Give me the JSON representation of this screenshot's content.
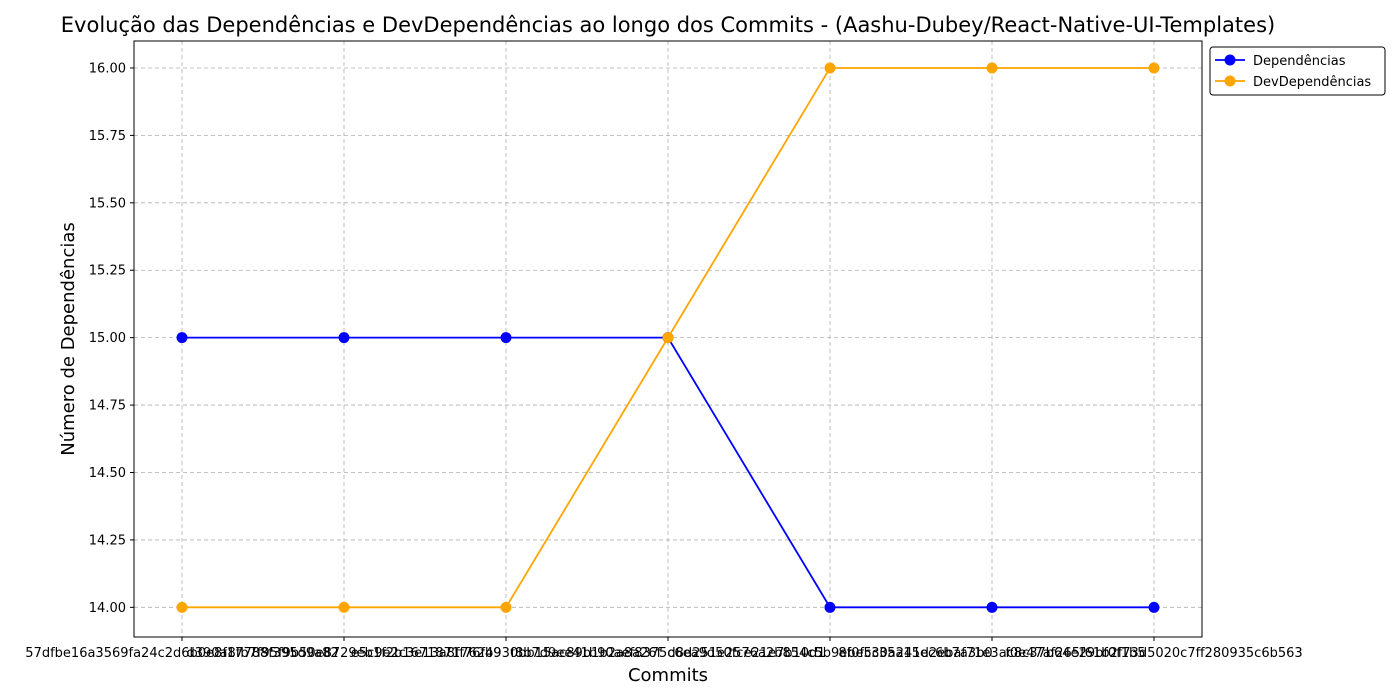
{
  "chart_data": {
    "type": "line",
    "title": "Evolução das Dependências e DevDependências ao longo dos Commits - (Aashu-Dubey/React-Native-UI-Templates)",
    "xlabel": "Commits",
    "ylabel": "Número de Dependências",
    "categories": [
      "57dfbe16a3569fa24c2d6b0e8f17788f395d9a82",
      "d390a8fb7f95f9b50e8729eb1f2b1671871762b9",
      "e5c9e2c3e13a8ff76f4930bb15ac89b1b2a8a26f",
      "f8b7d9ee41b90aef8375c6ea9d50fce21e7b10d1",
      "d8d251e2576a2b854c5b9ebe5c35a15ec6b7a3b0",
      "8f0fc30a241d2ebaf71e3ac8c37b64e29bf0f1b5",
      "f0e47af265f61b2f73d5020c7ff280935c6b563"
    ],
    "ylim": [
      13.89,
      16.1
    ],
    "yticks": [
      "14.00",
      "14.25",
      "14.50",
      "14.75",
      "15.00",
      "15.25",
      "15.50",
      "15.75",
      "16.00"
    ],
    "grid": true,
    "legend_position": "upper-right-outside",
    "series": [
      {
        "name": "Dependências",
        "color": "#0000ff",
        "values": [
          15,
          15,
          15,
          15,
          14,
          14,
          14
        ]
      },
      {
        "name": "DevDependências",
        "color": "#ffa500",
        "values": [
          14,
          14,
          14,
          15,
          16,
          16,
          16
        ]
      }
    ]
  }
}
